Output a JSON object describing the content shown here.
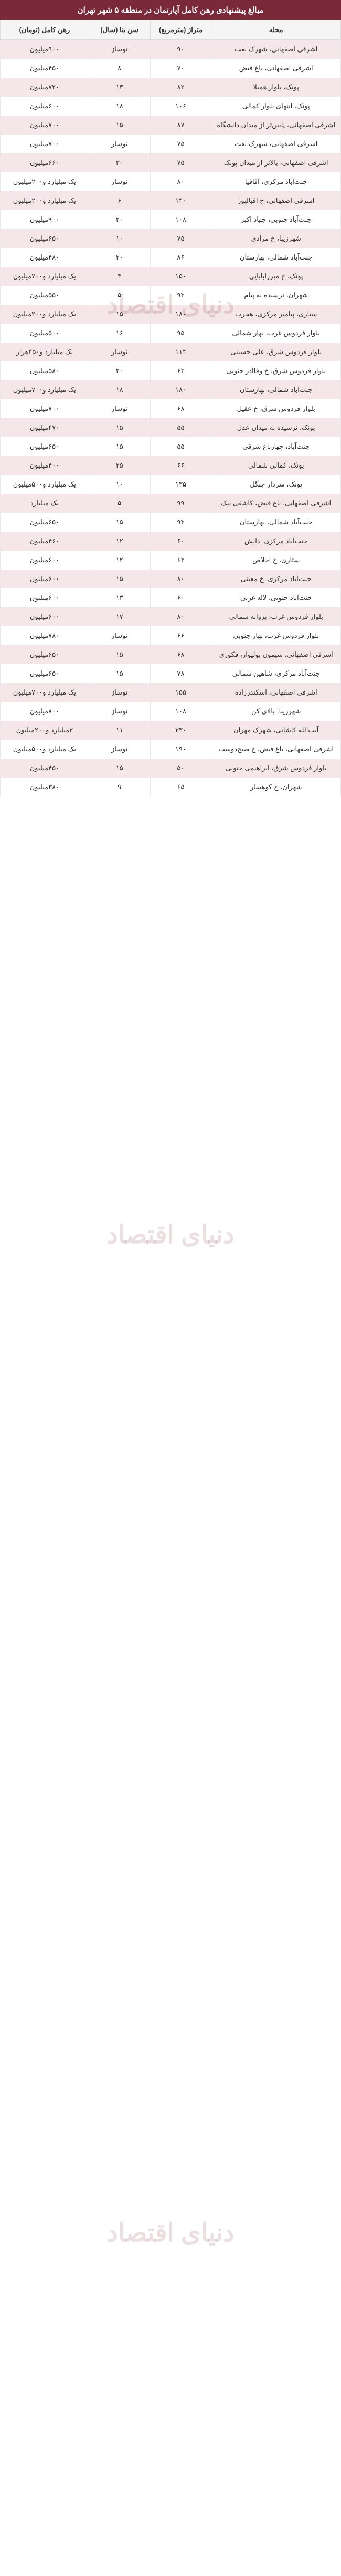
{
  "title": "مبالغ پیشنهادی رهن کامل آپارتمان در منطقه ۵ شهر تهران",
  "columns": [
    "محله",
    "متراژ (مترمربع)",
    "سن بنا (سال)",
    "رهن کامل (تومان)"
  ],
  "style": {
    "header_bg": "#7a2939",
    "header_text": "#ffffff",
    "row_even_bg": "#f5e6e9",
    "row_odd_bg": "#ffffff",
    "border_color": "#e8e8e8",
    "font_size_cell": 13,
    "font_size_title": 15
  },
  "rows": [
    [
      "اشرفی اصفهانی، شهرک نفت",
      "۹۰",
      "نوساز",
      "۹۰۰میلیون"
    ],
    [
      "اشرفی اصفهانی، باغ فیض",
      "۷۰",
      "۸",
      "۴۵۰میلیون"
    ],
    [
      "پونک، بلوار همیلا",
      "۸۲",
      "۱۳",
      "۷۲۰میلیون"
    ],
    [
      "پونک، انتهای بلوار کمالی",
      "۱۰۶",
      "۱۸",
      "۶۰۰میلیون"
    ],
    [
      "اشرفی اصفهانی، پایین‌تر از میدان دانشگاه",
      "۸۷",
      "۱۵",
      "۷۰۰میلیون"
    ],
    [
      "اشرفی اصفهانی، شهرک نفت",
      "۷۵",
      "نوساز",
      "۷۰۰میلیون"
    ],
    [
      "اشرفی اصفهانی، بالاتر از میدان پونک",
      "۷۵",
      "۳۰",
      "۶۶۰میلیون"
    ],
    [
      "جنت‌آباد مرکزی، آقاقیا",
      "۸۰",
      "نوساز",
      "یک میلیارد و۲۰۰میلیون"
    ],
    [
      "اشرفی اصفهانی، خ اقبالپور",
      "۱۴۰",
      "۶",
      "یک میلیارد و۲۰۰میلیون"
    ],
    [
      "جنت‌آباد جنوبی، جهاد اکبر",
      "۱۰۸",
      "۲۰",
      "۹۰۰میلیون"
    ],
    [
      "شهرزیبا، خ مرادی",
      "۷۵",
      "۱۰",
      "۶۵۰میلیون"
    ],
    [
      "جنت‌آباد شمالی، بهارستان",
      "۸۶",
      "۲۰",
      "۴۸۰میلیون"
    ],
    [
      "پونک، خ میرزابابایی",
      "۱۵۰",
      "۳",
      "یک میلیارد و۷۰۰میلیون"
    ],
    [
      "شهران، نرسیده به پیام",
      "۹۳",
      "۵",
      "۵۵۰میلیون"
    ],
    [
      "ستاری، پیامبر مرکزی، هجرت",
      "۱۸۰",
      "۱۵",
      "یک میلیارد و۲۰۰میلیون"
    ],
    [
      "بلوار فردوس غرب، بهار شمالی",
      "۹۵",
      "۱۶",
      "۵۰۰میلیون"
    ],
    [
      "بلوار فردوس شرق، علی حسینی",
      "۱۱۴",
      "نوساز",
      "یک میلیارد و۴۵۰هزار"
    ],
    [
      "بلوار فردوس شرق، خ وفاآذر جنوبی",
      "۶۳",
      "۲۰",
      "۵۸۰میلیون"
    ],
    [
      "جنت‌آباد شمالی، بهارستان",
      "۱۸۰",
      "۱۸",
      "یک میلیارد و۷۰۰میلیون"
    ],
    [
      "بلوار فردوس شرق، خ عقیل",
      "۶۸",
      "نوساز",
      "۷۰۰میلیون"
    ],
    [
      "پونک، نرسیده به میدان عدل",
      "۵۵",
      "۱۵",
      "۴۷۰میلیون"
    ],
    [
      "جنت‌آباد، چهارباغ شرقی",
      "۵۵",
      "۱۵",
      "۶۵۰میلیون"
    ],
    [
      "پونک، کمالی شمالی",
      "۶۶",
      "۲۵",
      "۴۰۰میلیون"
    ],
    [
      "پونک، سردار جنگل",
      "۱۳۵",
      "۱۰",
      "یک میلیارد و۵۰۰میلیون"
    ],
    [
      "اشرفی اصفهانی، باغ فیض، کاشفی نیک",
      "۹۹",
      "۵",
      "یک میلیارد"
    ],
    [
      "جنت‌آباد شمالی، بهارستان",
      "۹۳",
      "۱۵",
      "۶۵۰میلیون"
    ],
    [
      "جنت‌آباد مرکزی، دانش",
      "۶۰",
      "۱۲",
      "۴۶۰میلیون"
    ],
    [
      "ستاری، خ اخلاص",
      "۶۳",
      "۱۲",
      "۶۰۰میلیون"
    ],
    [
      "جنت‌آباد مرکزی، خ معینی",
      "۸۰",
      "۱۵",
      "۶۰۰میلیون"
    ],
    [
      "جنت‌آباد جنوبی، لاله غربی",
      "۶۰",
      "۱۳",
      "۶۰۰میلیون"
    ],
    [
      "بلوار فردوس غرب، پروانه شمالی",
      "۸۰",
      "۱۷",
      "۶۰۰میلیون"
    ],
    [
      "بلوار فردوس غرب، بهار جنوبی",
      "۶۶",
      "نوساز",
      "۷۸۰میلیون"
    ],
    [
      "اشرفی اصفهانی، سیمون بولیوار، فکوری",
      "۶۸",
      "۱۵",
      "۶۵۰میلیون"
    ],
    [
      "جنت‌آباد مرکزی، شاهین شمالی",
      "۷۸",
      "۱۵",
      "۶۵۰میلیون"
    ],
    [
      "اشرفی اصفهانی، اسکندرزاده",
      "۱۵۵",
      "نوساز",
      "یک میلیارد و۷۰۰میلیون"
    ],
    [
      "شهرزیبا، بالای کن",
      "۱۰۸",
      "نوساز",
      "۸۰۰میلیون"
    ],
    [
      "آیت‌الله کاشانی، شهرک مهران",
      "۲۳۰",
      "۱۱",
      "۲میلیارد و۲۰۰میلیون"
    ],
    [
      "اشرفی اصفهانی، باغ فیض، خ صبح‌دوست",
      "۱۹۰",
      "نوساز",
      "یک میلیارد و۵۰۰میلیون"
    ],
    [
      "بلوار فردوس شرق، ابراهیمی جنوبی",
      "۵۰",
      "۱۵",
      "۴۵۰میلیون"
    ],
    [
      "شهران، خ کوهسار",
      "۶۵",
      "۹",
      "۳۸۰میلیون"
    ]
  ]
}
